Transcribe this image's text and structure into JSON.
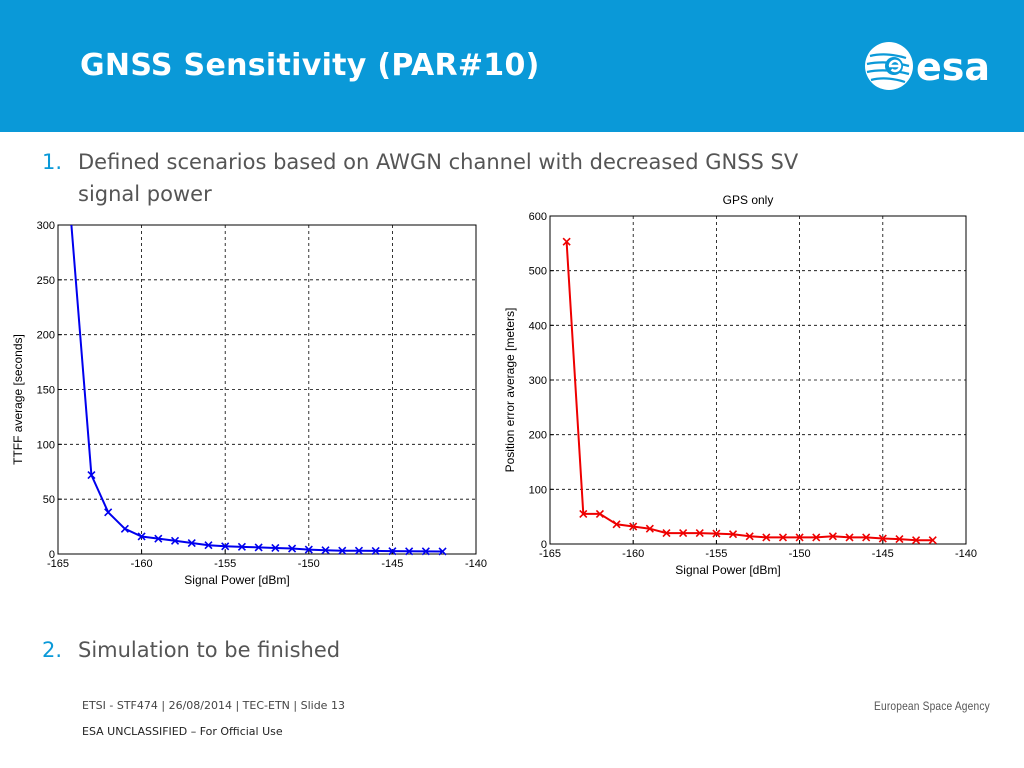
{
  "header": {
    "title": "GNSS Sensitivity (PAR#10)",
    "logo_text": "esa",
    "bg_color": "#0a99d8"
  },
  "bullets": [
    {
      "number": "1.",
      "text_line1": "Defined scenarios based on AWGN channel with decreased GNSS SV",
      "text_line2": "signal power"
    },
    {
      "number": "2.",
      "text_line1": "Simulation to be finished"
    }
  ],
  "footer": {
    "left": "ETSI - STF474 | 26/08/2014 | TEC-ETN | Slide  13",
    "classification": "ESA UNCLASSIFIED – For Official Use",
    "right": "European Space Agency"
  },
  "chart_data": [
    {
      "type": "line",
      "title": "",
      "xlabel": "Signal Power [dBm]",
      "ylabel": "TTFF average [seconds]",
      "xlim": [
        -165,
        -140
      ],
      "ylim": [
        0,
        300
      ],
      "xticks": [
        -165,
        -160,
        -155,
        -150,
        -145,
        -140
      ],
      "yticks": [
        0,
        50,
        100,
        150,
        200,
        250,
        300
      ],
      "grid": true,
      "color": "#0000ee",
      "series": [
        {
          "x": [
            -164.2,
            -163,
            -162,
            -161,
            -160,
            -159,
            -158,
            -157,
            -156,
            -155,
            -154,
            -153,
            -152,
            -151,
            -150,
            -149,
            -148,
            -147,
            -146,
            -145,
            -144,
            -143,
            -142
          ],
          "y": [
            300,
            72,
            38,
            23,
            16,
            14,
            12,
            10,
            8,
            7,
            6.5,
            6,
            5.5,
            5,
            4,
            3.5,
            3,
            3,
            2.8,
            2.6,
            2.5,
            2.4,
            2.3
          ],
          "markers": [
            false,
            true,
            true,
            true,
            true,
            true,
            true,
            true,
            true,
            true,
            true,
            true,
            true,
            true,
            true,
            true,
            true,
            true,
            true,
            true,
            true,
            true,
            true
          ]
        }
      ]
    },
    {
      "type": "line",
      "title": "GPS only",
      "xlabel": "Signal Power [dBm]",
      "ylabel": "Position error average [meters]",
      "xlim": [
        -165,
        -140
      ],
      "ylim": [
        0,
        600
      ],
      "xticks": [
        -165,
        -160,
        -155,
        -150,
        -145,
        -140
      ],
      "yticks": [
        0,
        100,
        200,
        300,
        400,
        500,
        600
      ],
      "grid": true,
      "color": "#ee0000",
      "series": [
        {
          "x": [
            -164,
            -163,
            -162,
            -161,
            -160,
            -159,
            -158,
            -157,
            -156,
            -155,
            -154,
            -153,
            -152,
            -151,
            -150,
            -149,
            -148,
            -147,
            -146,
            -145,
            -144,
            -143,
            -142
          ],
          "y": [
            553,
            55,
            55,
            36,
            32,
            28,
            20,
            20,
            20,
            19,
            18,
            14,
            12,
            12,
            12,
            12,
            14,
            12,
            12,
            10,
            9,
            7,
            7
          ],
          "markers": [
            true,
            true,
            true,
            true,
            true,
            true,
            true,
            true,
            true,
            true,
            true,
            true,
            true,
            true,
            true,
            true,
            true,
            true,
            true,
            true,
            true,
            true,
            true
          ]
        }
      ]
    }
  ]
}
